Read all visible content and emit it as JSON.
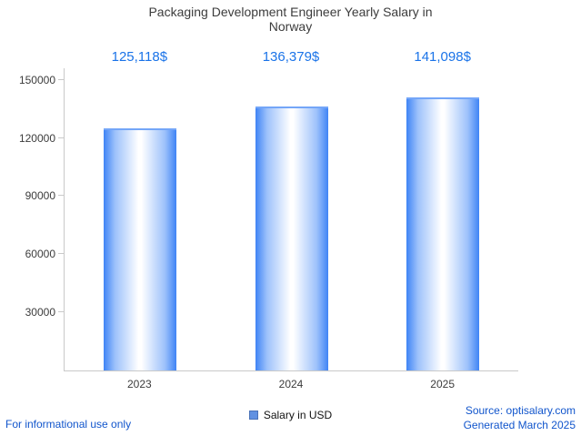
{
  "title": "Packaging Development Engineer Yearly Salary in Norway",
  "legend": {
    "label": "Salary in USD"
  },
  "footer": {
    "left": "For informational use only",
    "source": "Source: optisalary.com",
    "generated": "Generated March 2025"
  },
  "colors": {
    "accent_blue": "#1a73e8",
    "link_blue": "#1155cc",
    "bar_edge_blue": "#3f84f5",
    "legend_swatch_blue": "#6191e2",
    "axis_gray": "#c9c9c9"
  },
  "chart_data": {
    "type": "bar",
    "title": "Packaging Development Engineer Yearly Salary in Norway",
    "categories": [
      "2023",
      "2024",
      "2025"
    ],
    "values": [
      125118,
      136379,
      141098
    ],
    "value_labels": [
      "125,118$",
      "136,379$",
      "141,098$"
    ],
    "series": [
      {
        "name": "Salary in USD",
        "values": [
          125118,
          136379,
          141098
        ]
      }
    ],
    "yticks": [
      30000,
      60000,
      90000,
      120000,
      150000
    ],
    "ylim": [
      0,
      156000
    ],
    "xlabel": "",
    "ylabel": "",
    "grid": false,
    "legend_position": "bottom-center"
  }
}
